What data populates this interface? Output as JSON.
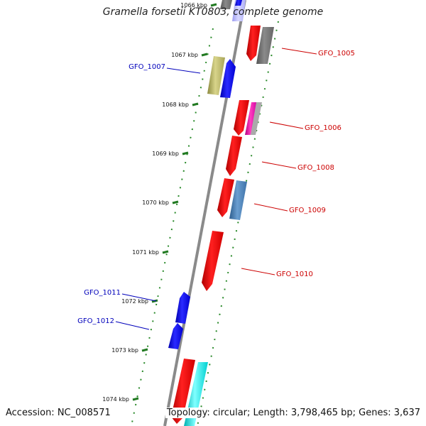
{
  "title": "Gramella forsetii KT0803, complete genome",
  "footer": {
    "accession": "Accession: NC_008571",
    "topology": "Topology: circular; Length: 3,798,465 bp; Genes: 3,637"
  },
  "colors": {
    "backbone": "#8a8a8a",
    "tick": "#227a22",
    "forward_label": "#cc0000",
    "reverse_label": "#0000bb"
  },
  "ticks": [
    {
      "label": "1066 kbp"
    },
    {
      "label": "1067 kbp"
    },
    {
      "label": "1068 kbp"
    },
    {
      "label": "1069 kbp"
    },
    {
      "label": "1070 kbp"
    },
    {
      "label": "1071 kbp"
    },
    {
      "label": "1072 kbp"
    },
    {
      "label": "1073 kbp"
    },
    {
      "label": "1074 kbp"
    }
  ],
  "gene_labels": [
    {
      "label": "GFO_1005",
      "strand": "forward"
    },
    {
      "label": "GFO_1006",
      "strand": "forward"
    },
    {
      "label": "GFO_1008",
      "strand": "forward"
    },
    {
      "label": "GFO_1009",
      "strand": "forward"
    },
    {
      "label": "GFO_1010",
      "strand": "forward"
    },
    {
      "label": "GFO_1007",
      "strand": "reverse"
    },
    {
      "label": "GFO_1011",
      "strand": "reverse"
    },
    {
      "label": "GFO_1012",
      "strand": "reverse"
    }
  ]
}
